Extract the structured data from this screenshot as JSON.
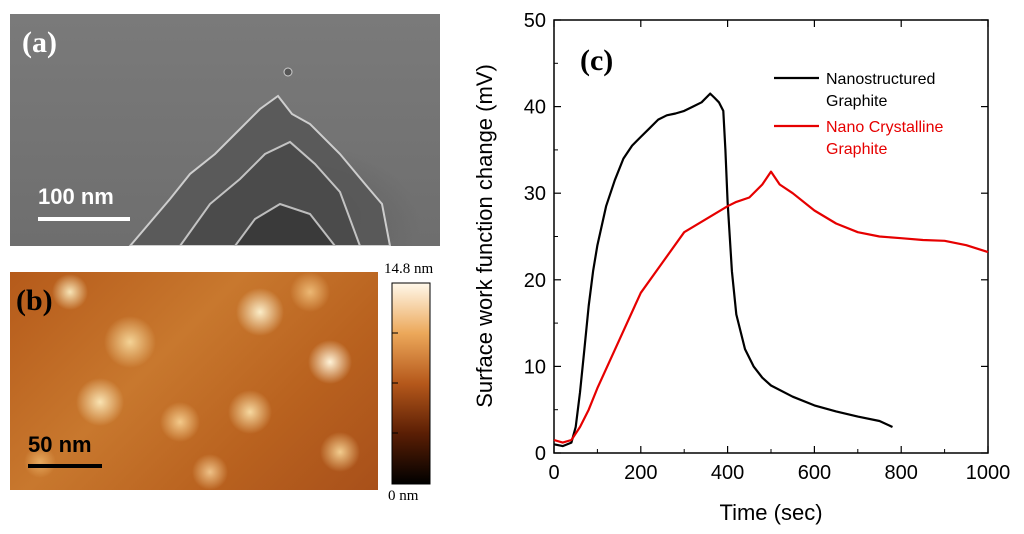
{
  "panel_a": {
    "label": "(a)",
    "scale_bar": "100 nm"
  },
  "panel_b": {
    "label": "(b)",
    "scale_bar": "50 nm",
    "colorbar_max": "14.8 nm",
    "colorbar_min": "0 nm"
  },
  "colors": {
    "nanostructured": "#000000",
    "nanocrystalline": "#e60000"
  },
  "chart_data": {
    "type": "line",
    "label": "(c)",
    "title": "",
    "xlabel": "Time (sec)",
    "ylabel": "Surface work function change (mV)",
    "xlim": [
      0,
      1000
    ],
    "ylim": [
      0,
      50
    ],
    "xticks": [
      0,
      200,
      400,
      600,
      800,
      1000
    ],
    "yticks": [
      0,
      10,
      20,
      30,
      40,
      50
    ],
    "legend_position": "top-right",
    "series": [
      {
        "name": "Nanostructured\nGraphite",
        "name_lines": [
          "Nanostructured",
          "Graphite"
        ],
        "color": "#000000",
        "x": [
          0,
          20,
          40,
          50,
          60,
          70,
          80,
          90,
          100,
          120,
          140,
          160,
          180,
          200,
          220,
          240,
          260,
          280,
          300,
          320,
          340,
          360,
          370,
          380,
          390,
          395,
          400,
          410,
          420,
          440,
          460,
          480,
          500,
          550,
          600,
          650,
          700,
          750,
          780
        ],
        "y": [
          1,
          0.8,
          1.2,
          3,
          7,
          12,
          17,
          21,
          24,
          28.5,
          31.5,
          34,
          35.5,
          36.5,
          37.5,
          38.5,
          39,
          39.2,
          39.5,
          40,
          40.5,
          41.5,
          41,
          40.5,
          39.5,
          35,
          29,
          21,
          16,
          12,
          10,
          8.7,
          7.8,
          6.5,
          5.5,
          4.8,
          4.2,
          3.7,
          3
        ]
      },
      {
        "name": "Nano Crystalline\nGraphite",
        "name_lines": [
          "Nano Crystalline",
          "Graphite"
        ],
        "color": "#e60000",
        "x": [
          0,
          20,
          40,
          60,
          80,
          100,
          150,
          200,
          250,
          300,
          350,
          400,
          420,
          450,
          480,
          500,
          520,
          550,
          600,
          650,
          700,
          750,
          800,
          850,
          900,
          950,
          1000
        ],
        "y": [
          1.5,
          1.2,
          1.5,
          3,
          5,
          7.5,
          13,
          18.5,
          22,
          25.5,
          27,
          28.5,
          29,
          29.5,
          31,
          32.5,
          31,
          30,
          28,
          26.5,
          25.5,
          25,
          24.8,
          24.6,
          24.5,
          24,
          23.2
        ]
      }
    ]
  }
}
